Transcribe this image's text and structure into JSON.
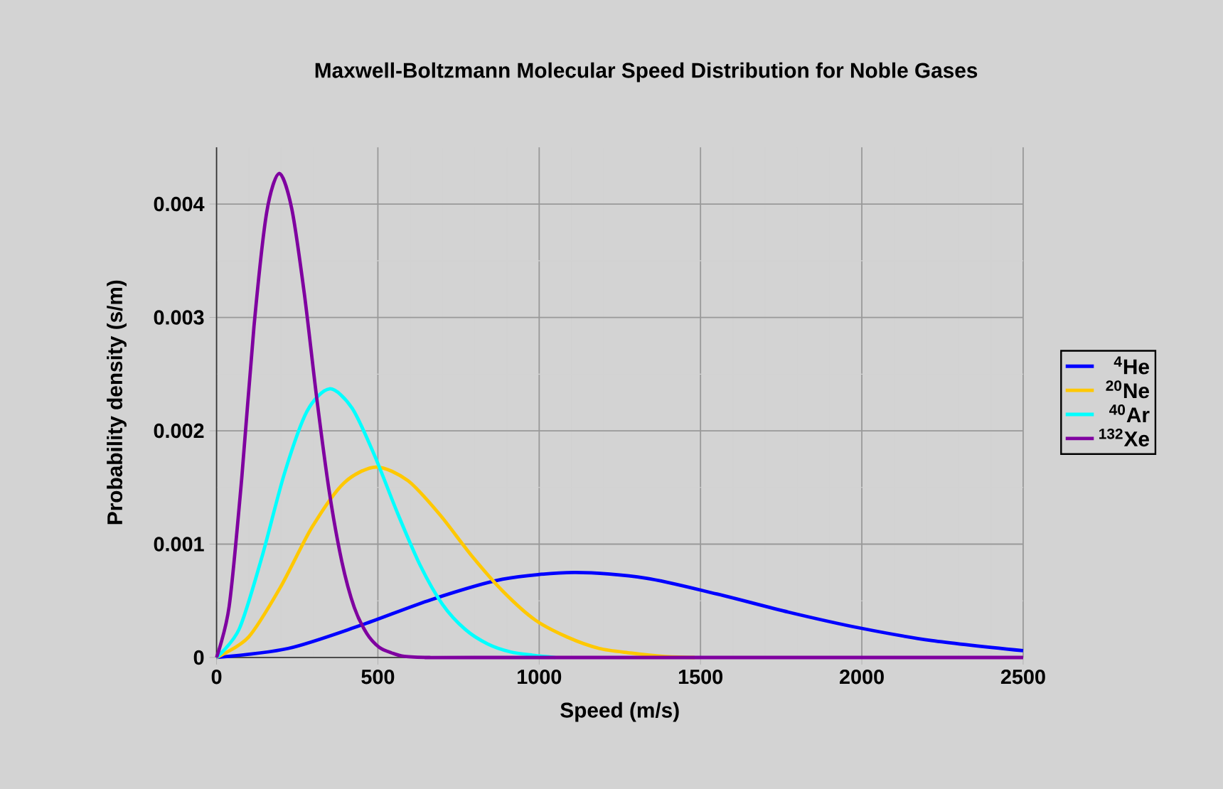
{
  "chart_data": {
    "type": "line",
    "title": "Maxwell-Boltzmann Molecular Speed Distribution for Noble Gases",
    "xlabel": "Speed (m/s)",
    "ylabel": "Probability density (s/m)",
    "xlim": [
      0,
      2500
    ],
    "xticks": [
      0,
      500,
      1000,
      1500,
      2000,
      2500
    ],
    "ylim": [
      0,
      0.0045
    ],
    "yticks": [
      0,
      0.001,
      0.002,
      0.003,
      0.004
    ],
    "grid": true,
    "legend": "right",
    "marker": "none",
    "line_style": "solid",
    "series": [
      {
        "name": "$^{4}$He",
        "color": "#0000ff",
        "x": [
          0,
          222,
          443,
          665,
          886,
          1108,
          1330,
          1551,
          1773,
          1994,
          2216,
          2500
        ],
        "values": [
          0,
          8e-05,
          0.00028,
          0.00051,
          0.00069,
          0.00075,
          0.0007,
          0.00056,
          0.0004,
          0.00026,
          0.00015,
          6e-05
        ]
      },
      {
        "name": "$^{20}$Ne",
        "color": "#ffc800",
        "x": [
          0,
          99,
          198,
          296,
          395,
          494,
          593,
          692,
          790,
          889,
          988,
          1087,
          1186,
          1284,
          1383,
          1482
        ],
        "values": [
          0,
          0.00018,
          0.00062,
          0.00115,
          0.00154,
          0.00168,
          0.00156,
          0.00126,
          0.0009,
          0.00058,
          0.00033,
          0.00018,
          8e-05,
          4e-05,
          1e-05,
          0
        ]
      },
      {
        "name": "$^{40}$Ar",
        "color": "#00ffff",
        "x": [
          0,
          70,
          140,
          210,
          280,
          350,
          420,
          490,
          560,
          630,
          700,
          770,
          840,
          910,
          980,
          1050
        ],
        "values": [
          0,
          0.00025,
          0.00088,
          0.00162,
          0.00217,
          0.00237,
          0.0022,
          0.00178,
          0.00128,
          0.00082,
          0.00047,
          0.00025,
          0.00012,
          5e-05,
          2e-05,
          0
        ]
      },
      {
        "name": "$^{132}$Xe",
        "color": "#7f00a0",
        "x": [
          0,
          39,
          78,
          116,
          155,
          194,
          233,
          272,
          310,
          349,
          388,
          427,
          466,
          504,
          543,
          582,
          660,
          800,
          2500
        ],
        "values": [
          0,
          0.00045,
          0.00158,
          0.00292,
          0.00392,
          0.00427,
          0.00396,
          0.00321,
          0.0023,
          0.00147,
          0.00085,
          0.00044,
          0.00021,
          9e-05,
          4e-05,
          1e-05,
          0,
          0,
          0
        ]
      }
    ]
  }
}
